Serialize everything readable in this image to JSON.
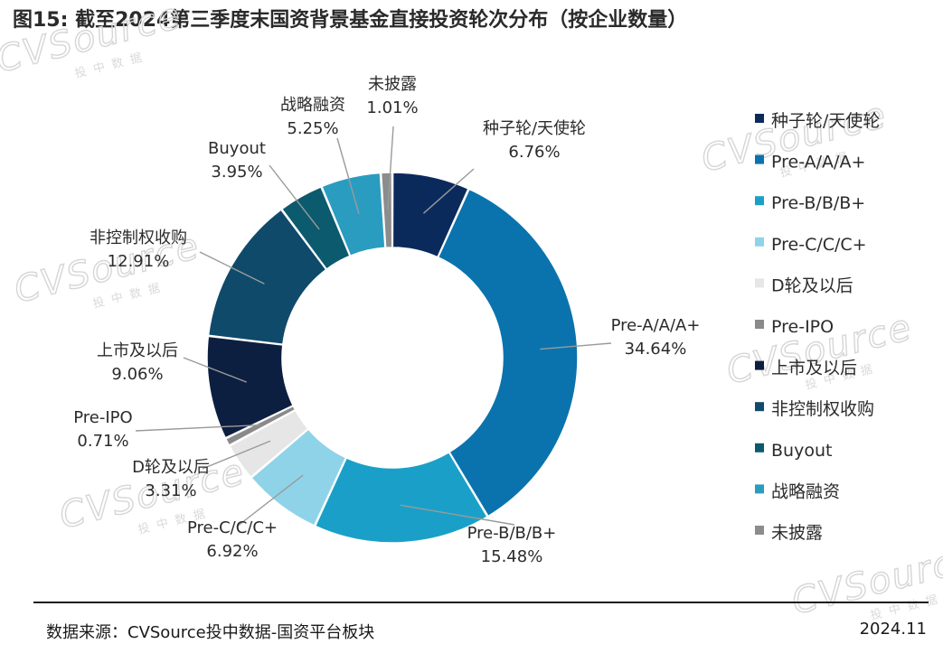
{
  "title": "图15: 截至2024第三季度末国资背景基金直接投资轮次分布（按企业数量）",
  "watermark": {
    "brand": "CVSource",
    "sub": "投中数据"
  },
  "footer": {
    "source": "数据来源：CVSource投中数据-国资平台板块",
    "date": "2024.11"
  },
  "chart_data": {
    "type": "pie",
    "donut": true,
    "title": "图15: 截至2024第三季度末国资背景基金直接投资轮次分布（按企业数量）",
    "legend_position": "right",
    "slices": [
      {
        "name": "种子轮/天使轮",
        "value": 6.76,
        "label": "6.76%",
        "color": "#0b2a5c"
      },
      {
        "name": "Pre-A/A/A+",
        "value": 34.64,
        "label": "34.64%",
        "color": "#0a73ad"
      },
      {
        "name": "Pre-B/B/B+",
        "value": 15.48,
        "label": "15.48%",
        "color": "#1aa0c8"
      },
      {
        "name": "Pre-C/C/C+",
        "value": 6.92,
        "label": "6.92%",
        "color": "#8fd3e8"
      },
      {
        "name": "D轮及以后",
        "value": 3.31,
        "label": "3.31%",
        "color": "#e6e6e6"
      },
      {
        "name": "Pre-IPO",
        "value": 0.71,
        "label": "0.71%",
        "color": "#8a8a8a"
      },
      {
        "name": "上市及以后",
        "value": 9.06,
        "label": "9.06%",
        "color": "#0d1f40"
      },
      {
        "name": "非控制权收购",
        "value": 12.91,
        "label": "12.91%",
        "color": "#0f4a6b"
      },
      {
        "name": "Buyout",
        "value": 3.95,
        "label": "3.95%",
        "color": "#0c5a6e"
      },
      {
        "name": "战略融资",
        "value": 5.25,
        "label": "5.25%",
        "color": "#2a9cc0"
      },
      {
        "name": "未披露",
        "value": 1.01,
        "label": "1.01%",
        "color": "#8c8c8c"
      }
    ]
  }
}
